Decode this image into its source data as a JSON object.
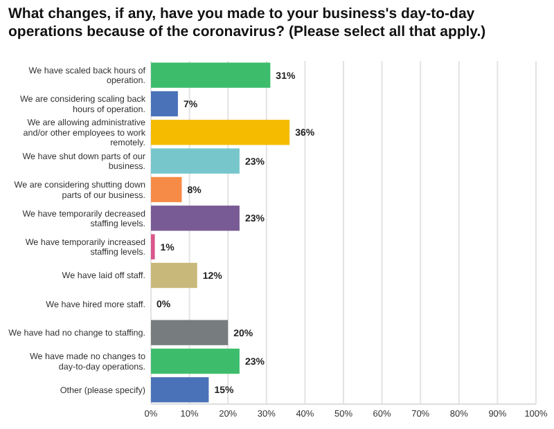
{
  "chart_data": {
    "type": "bar",
    "orientation": "horizontal",
    "title": "What changes, if any, have you made to your business's day-to-day operations because of the coronavirus? (Please select all that apply.)",
    "categories": [
      "We have scaled back hours of operation.",
      "We are considering scaling back hours of operation.",
      "We are allowing administrative and/or other employees to work remotely.",
      "We have shut down parts of our business.",
      "We are considering shutting down parts of our business.",
      "We have temporarily decreased staffing levels.",
      "We have temporarily increased staffing levels.",
      "We have laid off staff.",
      "We have hired more staff.",
      "We have had no change to staffing.",
      "We have made no changes to day-to-day operations.",
      "Other (please specify)"
    ],
    "values": [
      31,
      7,
      36,
      23,
      8,
      23,
      1,
      12,
      0,
      20,
      23,
      15
    ],
    "colors": [
      "#3dbd6c",
      "#4a72b8",
      "#f5bb00",
      "#76c6cc",
      "#f68b47",
      "#785a94",
      "#d9568a",
      "#c8b97a",
      "#777c7f",
      "#777c7f",
      "#3dbd6c",
      "#4a72b8"
    ],
    "value_labels": [
      "31%",
      "7%",
      "36%",
      "23%",
      "8%",
      "23%",
      "1%",
      "12%",
      "0%",
      "20%",
      "23%",
      "15%"
    ],
    "xlim": [
      0,
      100
    ],
    "xticks": [
      {
        "value": 0,
        "label": "0%"
      },
      {
        "value": 10,
        "label": "10%"
      },
      {
        "value": 20,
        "label": "20%"
      },
      {
        "value": 30,
        "label": "30%"
      },
      {
        "value": 40,
        "label": "40%"
      },
      {
        "value": 50,
        "label": "50%"
      },
      {
        "value": 60,
        "label": "60%"
      },
      {
        "value": 70,
        "label": "70%"
      },
      {
        "value": 80,
        "label": "80%"
      },
      {
        "value": 90,
        "label": "90%"
      },
      {
        "value": 100,
        "label": "100%"
      }
    ],
    "grid": "x"
  }
}
